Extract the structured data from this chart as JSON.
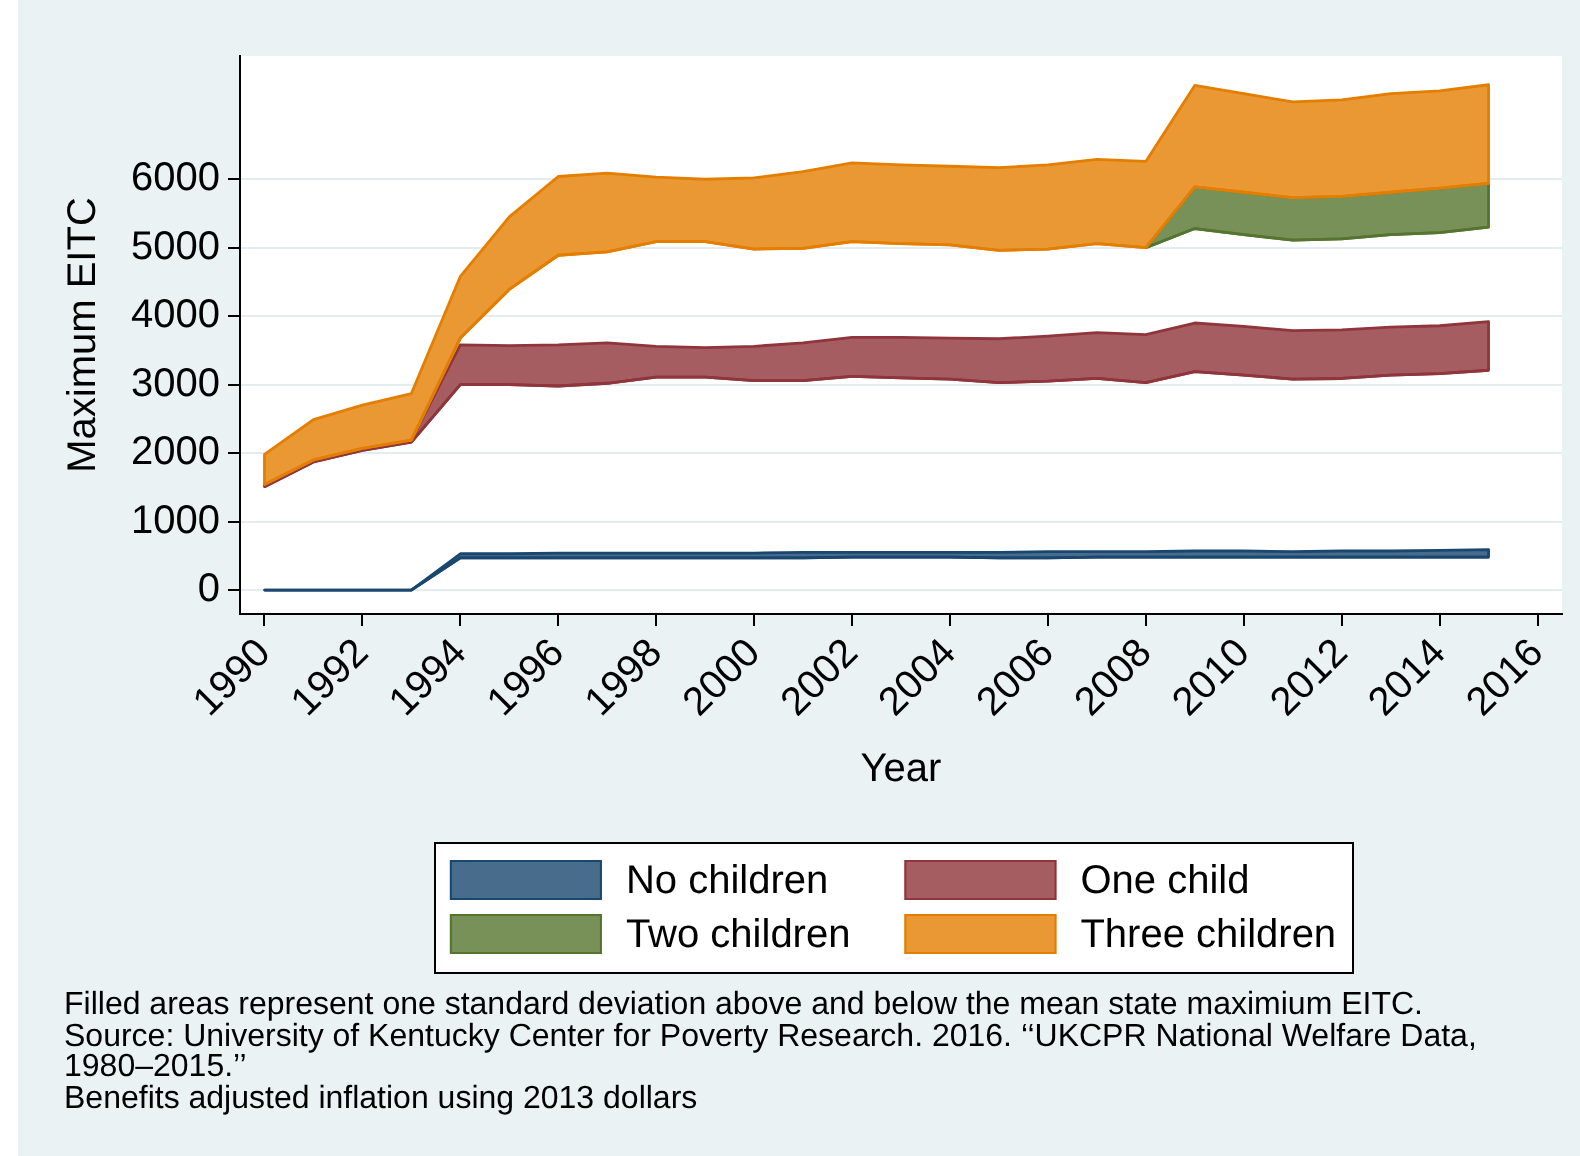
{
  "chart_data": {
    "type": "line",
    "xlabel": "Year",
    "ylabel": "Maximum EITC",
    "x": [
      1990,
      1991,
      1992,
      1993,
      1994,
      1995,
      1996,
      1997,
      1998,
      1999,
      2000,
      2001,
      2002,
      2003,
      2004,
      2005,
      2006,
      2007,
      2008,
      2009,
      2010,
      2011,
      2012,
      2013,
      2014,
      2015
    ],
    "xlim": [
      1989.5,
      2016.5
    ],
    "xticks": [
      1990,
      1992,
      1994,
      1996,
      1998,
      2000,
      2002,
      2004,
      2006,
      2008,
      2010,
      2012,
      2014,
      2016
    ],
    "ylim": [
      -350,
      7800
    ],
    "yticks": [
      0,
      1000,
      2000,
      3000,
      4000,
      5000,
      6000
    ],
    "grid": "y",
    "legend": "bottom",
    "series": [
      {
        "name": "No children",
        "color": "#1a476f",
        "values": [
          0,
          0,
          0,
          0,
          470,
          470,
          470,
          470,
          470,
          470,
          470,
          470,
          480,
          480,
          480,
          470,
          470,
          480,
          480,
          480,
          480,
          480,
          480,
          480,
          480,
          480
        ],
        "upper": [
          0,
          0,
          0,
          0,
          530,
          530,
          540,
          540,
          540,
          540,
          540,
          550,
          550,
          550,
          550,
          550,
          560,
          560,
          560,
          570,
          570,
          560,
          570,
          570,
          580,
          590
        ],
        "lower": [
          0,
          0,
          0,
          0,
          470,
          470,
          470,
          470,
          470,
          470,
          470,
          470,
          480,
          480,
          480,
          470,
          470,
          480,
          480,
          480,
          480,
          480,
          480,
          480,
          480,
          480
        ]
      },
      {
        "name": "One child",
        "color": "#90353b",
        "values": [
          1510,
          1870,
          2040,
          2160,
          3000,
          3000,
          2980,
          3020,
          3110,
          3110,
          3060,
          3060,
          3120,
          3100,
          3080,
          3030,
          3050,
          3090,
          3030,
          3190,
          3140,
          3080,
          3090,
          3140,
          3160,
          3210
        ],
        "upper": [
          1540,
          1900,
          2070,
          2190,
          3580,
          3570,
          3580,
          3610,
          3560,
          3540,
          3560,
          3610,
          3690,
          3690,
          3680,
          3670,
          3710,
          3760,
          3730,
          3900,
          3850,
          3790,
          3800,
          3840,
          3860,
          3920
        ],
        "lower": [
          1510,
          1870,
          2040,
          2160,
          3000,
          3000,
          2980,
          3020,
          3110,
          3110,
          3060,
          3060,
          3120,
          3100,
          3080,
          3030,
          3050,
          3090,
          3030,
          3190,
          3140,
          3080,
          3090,
          3140,
          3160,
          3210
        ]
      },
      {
        "name": "Two children",
        "color": "#55752f",
        "values": [
          null,
          null,
          null,
          null,
          null,
          null,
          null,
          null,
          null,
          null,
          null,
          null,
          null,
          null,
          null,
          null,
          null,
          null,
          5000,
          5280,
          5190,
          5110,
          5130,
          5190,
          5220,
          5300
        ],
        "upper": [
          null,
          null,
          null,
          null,
          null,
          null,
          null,
          null,
          null,
          null,
          null,
          null,
          null,
          null,
          null,
          null,
          null,
          null,
          5000,
          5890,
          5810,
          5730,
          5750,
          5810,
          5870,
          5940
        ],
        "lower": [
          null,
          null,
          null,
          null,
          null,
          null,
          null,
          null,
          null,
          null,
          null,
          null,
          null,
          null,
          null,
          null,
          null,
          null,
          5000,
          5280,
          5190,
          5110,
          5130,
          5190,
          5220,
          5300
        ]
      },
      {
        "name": "Three children",
        "color": "#e37e00",
        "values": [
          1540,
          1900,
          2070,
          2190,
          3680,
          4390,
          4890,
          4940,
          5090,
          5090,
          4980,
          4990,
          5090,
          5060,
          5040,
          4960,
          4980,
          5060,
          5000,
          5890,
          5810,
          5730,
          5750,
          5810,
          5870,
          5940
        ],
        "upper": [
          1980,
          2490,
          2700,
          2870,
          4580,
          5450,
          6040,
          6090,
          6030,
          6000,
          6020,
          6110,
          6240,
          6210,
          6190,
          6170,
          6210,
          6290,
          6260,
          7370,
          7250,
          7130,
          7160,
          7250,
          7290,
          7380
        ],
        "lower": [
          1540,
          1900,
          2070,
          2190,
          3680,
          4390,
          4890,
          4940,
          5090,
          5090,
          4980,
          4990,
          5090,
          5060,
          5040,
          4960,
          4980,
          5060,
          5000,
          5890,
          5810,
          5730,
          5750,
          5810,
          5870,
          5940
        ]
      }
    ],
    "annotations": [
      "Filled areas represent one standard deviation above and below the mean state maximium EITC.",
      "Source: University of Kentucky Center for Poverty Research. 2016. ‘‘UKCPR National Welfare Data, 1980–2015.’’",
      "Benefits adjusted inflation using 2013 dollars"
    ]
  }
}
